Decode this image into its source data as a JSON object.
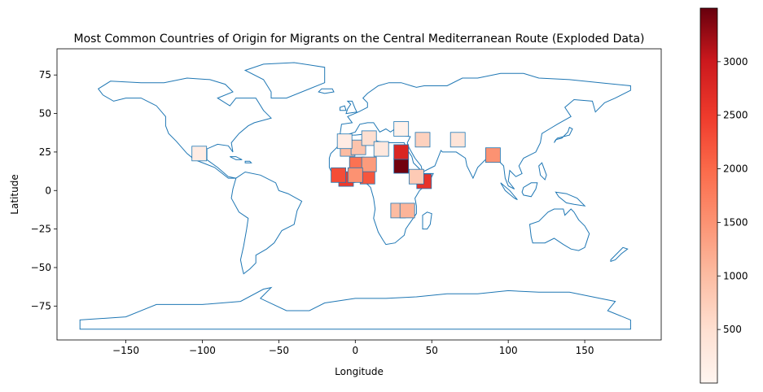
{
  "chart_data": {
    "type": "choropleth",
    "title": "Most Common Countries of Origin for Migrants on the Central Mediterranean Route (Exploded Data)",
    "xlabel": "Longitude",
    "ylabel": "Latitude",
    "xlim": [
      -195,
      200
    ],
    "ylim": [
      -97,
      92
    ],
    "x_ticks": [
      -150,
      -100,
      -50,
      0,
      50,
      100,
      150
    ],
    "y_ticks": [
      -75,
      -50,
      -25,
      0,
      25,
      50,
      75
    ],
    "x_tick_labels": [
      "−150",
      "−100",
      "−50",
      "0",
      "50",
      "100",
      "150"
    ],
    "y_tick_labels": [
      "−75",
      "−50",
      "−25",
      "0",
      "25",
      "50",
      "75"
    ],
    "grid": false,
    "boundary_color": "#1f77b4",
    "colormap": "Reds",
    "colorbar": {
      "min": 0,
      "max": 3500,
      "ticks": [
        500,
        1000,
        1500,
        2000,
        2500,
        3000
      ],
      "tick_labels": [
        "500",
        "1000",
        "1500",
        "2000",
        "2500",
        "3000"
      ]
    },
    "highlighted_regions": [
      {
        "lon": 30,
        "lat": 16,
        "value": 3450
      },
      {
        "lon": 30,
        "lat": 25,
        "value": 2800
      },
      {
        "lon": 45,
        "lat": 6,
        "value": 2600
      },
      {
        "lon": -6,
        "lat": 7.5,
        "value": 2500
      },
      {
        "lon": -11,
        "lat": 10,
        "value": 2300
      },
      {
        "lon": 8,
        "lat": 9,
        "value": 2200
      },
      {
        "lon": 1,
        "lat": 17,
        "value": 1900
      },
      {
        "lon": 9,
        "lat": 17,
        "value": 1400
      },
      {
        "lon": -5,
        "lat": 27,
        "value": 1000
      },
      {
        "lon": 0,
        "lat": 10,
        "value": 1500
      },
      {
        "lon": 40,
        "lat": 9,
        "value": 800
      },
      {
        "lon": 2,
        "lat": 28,
        "value": 900
      },
      {
        "lon": 9,
        "lat": 34,
        "value": 500
      },
      {
        "lon": 17,
        "lat": 27,
        "value": 300
      },
      {
        "lon": 28,
        "lat": -13,
        "value": 1000
      },
      {
        "lon": 34,
        "lat": -13,
        "value": 1100
      },
      {
        "lon": 44,
        "lat": 33,
        "value": 700
      },
      {
        "lon": 67,
        "lat": 33,
        "value": 400
      },
      {
        "lon": 90,
        "lat": 23,
        "value": 1500
      },
      {
        "lon": -102,
        "lat": 24,
        "value": 200
      },
      {
        "lon": -7,
        "lat": 32,
        "value": 200
      },
      {
        "lon": 30,
        "lat": 40,
        "value": 100
      }
    ]
  }
}
